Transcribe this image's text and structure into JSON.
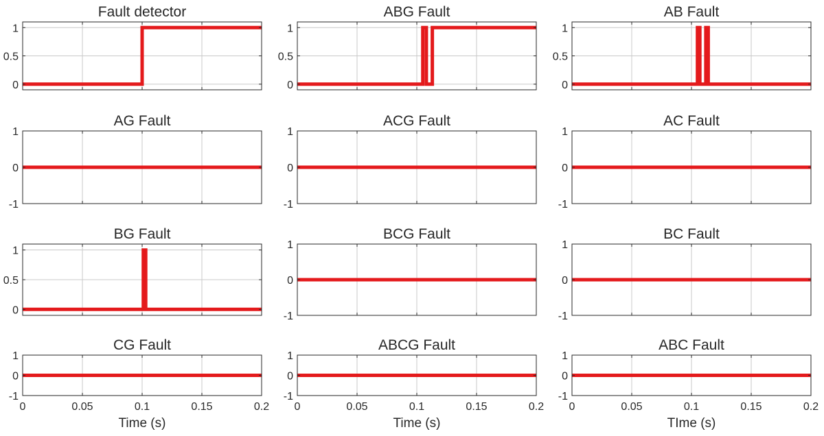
{
  "figure": {
    "line_color": "#e41a1c",
    "grid_color": "#c8c8c8",
    "axis_color": "#262626"
  },
  "chart_data": [
    {
      "type": "line",
      "title": "Fault detector",
      "xlim": [
        0,
        0.2
      ],
      "ylim": [
        -0.1,
        1.1
      ],
      "yticks": [
        {
          "v": 0,
          "label": "0"
        },
        {
          "v": 0.5,
          "label": "0.5"
        },
        {
          "v": 1,
          "label": "1"
        }
      ],
      "series": [
        {
          "points": [
            [
              0,
              0
            ],
            [
              0.1,
              0
            ],
            [
              0.1,
              1
            ],
            [
              0.2,
              1
            ]
          ]
        }
      ]
    },
    {
      "type": "line",
      "title": "ABG Fault",
      "xlim": [
        0,
        0.2
      ],
      "ylim": [
        -0.1,
        1.1
      ],
      "yticks": [
        {
          "v": 0,
          "label": "0"
        },
        {
          "v": 0.5,
          "label": "0.5"
        },
        {
          "v": 1,
          "label": "1"
        }
      ],
      "series": [
        {
          "points": [
            [
              0,
              0
            ],
            [
              0.105,
              0
            ],
            [
              0.105,
              1
            ],
            [
              0.108,
              1
            ],
            [
              0.108,
              0
            ],
            [
              0.113,
              0
            ],
            [
              0.113,
              1
            ],
            [
              0.2,
              1
            ]
          ]
        }
      ]
    },
    {
      "type": "line",
      "title": "AB Fault",
      "xlim": [
        0,
        0.2
      ],
      "ylim": [
        -0.1,
        1.1
      ],
      "yticks": [
        {
          "v": 0,
          "label": "0"
        },
        {
          "v": 0.5,
          "label": "0.5"
        },
        {
          "v": 1,
          "label": "1"
        }
      ],
      "series": [
        {
          "points": [
            [
              0,
              0
            ],
            [
              0.105,
              0
            ],
            [
              0.105,
              1
            ],
            [
              0.107,
              1
            ],
            [
              0.107,
              0
            ],
            [
              0.112,
              0
            ],
            [
              0.112,
              1
            ],
            [
              0.114,
              1
            ],
            [
              0.114,
              0
            ],
            [
              0.2,
              0
            ]
          ]
        }
      ]
    },
    {
      "type": "line",
      "title": "AG Fault",
      "xlim": [
        0,
        0.2
      ],
      "ylim": [
        -1,
        1
      ],
      "yticks": [
        {
          "v": -1,
          "label": "-1"
        },
        {
          "v": 0,
          "label": "0"
        },
        {
          "v": 1,
          "label": "1"
        }
      ],
      "series": [
        {
          "points": [
            [
              0,
              0
            ],
            [
              0.2,
              0
            ]
          ]
        }
      ]
    },
    {
      "type": "line",
      "title": "ACG Fault",
      "xlim": [
        0,
        0.2
      ],
      "ylim": [
        -1,
        1
      ],
      "yticks": [
        {
          "v": -1,
          "label": "-1"
        },
        {
          "v": 0,
          "label": "0"
        },
        {
          "v": 1,
          "label": "1"
        }
      ],
      "series": [
        {
          "points": [
            [
              0,
              0
            ],
            [
              0.2,
              0
            ]
          ]
        }
      ]
    },
    {
      "type": "line",
      "title": "AC Fault",
      "xlim": [
        0,
        0.2
      ],
      "ylim": [
        -1,
        1
      ],
      "yticks": [
        {
          "v": -1,
          "label": "-1"
        },
        {
          "v": 0,
          "label": "0"
        },
        {
          "v": 1,
          "label": "1"
        }
      ],
      "series": [
        {
          "points": [
            [
              0,
              0
            ],
            [
              0.2,
              0
            ]
          ]
        }
      ]
    },
    {
      "type": "line",
      "title": "BG Fault",
      "xlim": [
        0,
        0.2
      ],
      "ylim": [
        -0.1,
        1.1
      ],
      "yticks": [
        {
          "v": 0,
          "label": "0"
        },
        {
          "v": 0.5,
          "label": "0.5"
        },
        {
          "v": 1,
          "label": "1"
        }
      ],
      "series": [
        {
          "points": [
            [
              0,
              0
            ],
            [
              0.101,
              0
            ],
            [
              0.101,
              1
            ],
            [
              0.103,
              1
            ],
            [
              0.103,
              0
            ],
            [
              0.2,
              0
            ]
          ]
        }
      ]
    },
    {
      "type": "line",
      "title": "BCG Fault",
      "xlim": [
        0,
        0.2
      ],
      "ylim": [
        -1,
        1
      ],
      "yticks": [
        {
          "v": -1,
          "label": "-1"
        },
        {
          "v": 0,
          "label": "0"
        },
        {
          "v": 1,
          "label": "1"
        }
      ],
      "series": [
        {
          "points": [
            [
              0,
              0
            ],
            [
              0.2,
              0
            ]
          ]
        }
      ]
    },
    {
      "type": "line",
      "title": "BC Fault",
      "xlim": [
        0,
        0.2
      ],
      "ylim": [
        -1,
        1
      ],
      "yticks": [
        {
          "v": -1,
          "label": "-1"
        },
        {
          "v": 0,
          "label": "0"
        },
        {
          "v": 1,
          "label": "1"
        }
      ],
      "series": [
        {
          "points": [
            [
              0,
              0
            ],
            [
              0.2,
              0
            ]
          ]
        }
      ]
    },
    {
      "type": "line",
      "title": "CG Fault",
      "xlim": [
        0,
        0.2
      ],
      "ylim": [
        -1,
        1
      ],
      "xlabel": "Time (s)",
      "yticks": [
        {
          "v": -1,
          "label": "-1"
        },
        {
          "v": 0,
          "label": "0"
        },
        {
          "v": 1,
          "label": "1"
        }
      ],
      "xticks": [
        {
          "v": 0,
          "label": "0"
        },
        {
          "v": 0.05,
          "label": "0.05"
        },
        {
          "v": 0.1,
          "label": "0.1"
        },
        {
          "v": 0.15,
          "label": "0.15"
        },
        {
          "v": 0.2,
          "label": "0.2"
        }
      ],
      "series": [
        {
          "points": [
            [
              0,
              0
            ],
            [
              0.2,
              0
            ]
          ]
        }
      ]
    },
    {
      "type": "line",
      "title": "ABCG Fault",
      "xlim": [
        0,
        0.2
      ],
      "ylim": [
        -1,
        1
      ],
      "xlabel": "Time (s)",
      "yticks": [
        {
          "v": -1,
          "label": "-1"
        },
        {
          "v": 0,
          "label": "0"
        },
        {
          "v": 1,
          "label": "1"
        }
      ],
      "xticks": [
        {
          "v": 0,
          "label": "0"
        },
        {
          "v": 0.05,
          "label": "0.05"
        },
        {
          "v": 0.1,
          "label": "0.1"
        },
        {
          "v": 0.15,
          "label": "0.15"
        },
        {
          "v": 0.2,
          "label": "0.2"
        }
      ],
      "series": [
        {
          "points": [
            [
              0,
              0
            ],
            [
              0.2,
              0
            ]
          ]
        }
      ]
    },
    {
      "type": "line",
      "title": "ABC Fault",
      "xlim": [
        0,
        0.2
      ],
      "ylim": [
        -1,
        1
      ],
      "xlabel": "TIme (s)",
      "yticks": [
        {
          "v": -1,
          "label": "-1"
        },
        {
          "v": 0,
          "label": "0"
        },
        {
          "v": 1,
          "label": "1"
        }
      ],
      "xticks": [
        {
          "v": 0,
          "label": "0"
        },
        {
          "v": 0.05,
          "label": "0.05"
        },
        {
          "v": 0.1,
          "label": "0.1"
        },
        {
          "v": 0.15,
          "label": "0.15"
        },
        {
          "v": 0.2,
          "label": "0.2"
        }
      ],
      "series": [
        {
          "points": [
            [
              0,
              0
            ],
            [
              0.2,
              0
            ]
          ]
        }
      ]
    }
  ]
}
